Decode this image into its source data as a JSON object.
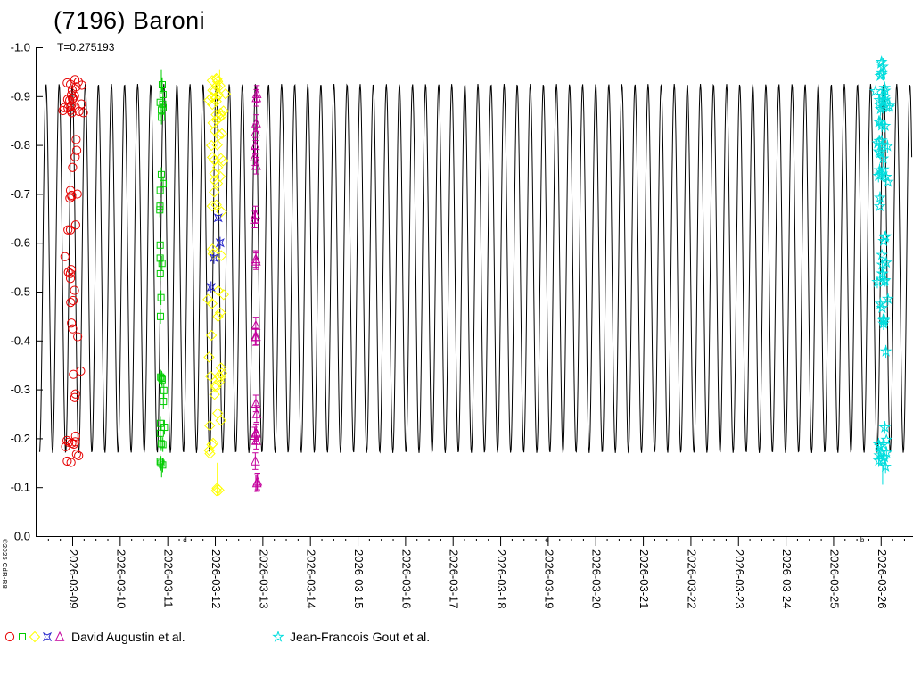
{
  "page": {
    "title": "(7196) Baroni",
    "period_label": "T=0.275193",
    "copyright": "©2025 CdR-R8"
  },
  "chart_data": {
    "type": "scatter",
    "title": "(7196) Baroni",
    "subtitle": "T=0.275193",
    "period_days": 0.275193,
    "xlabel": "",
    "ylabel": "",
    "ylim": [
      -1.0,
      0.0
    ],
    "y_axis_inverted": true,
    "grid": false,
    "legend_position": "bottom",
    "y_ticks": [
      "-1.0",
      "-0.9",
      "-0.8",
      "-0.7",
      "-0.6",
      "-0.5",
      "-0.4",
      "-0.3",
      "-0.2",
      "-0.1",
      "0.0"
    ],
    "x_ticks": [
      "2026-03-09",
      "2026-03-10",
      "2026-03-11",
      "2026-03-12",
      "2026-03-13",
      "2026-03-14",
      "2026-03-15",
      "2026-03-16",
      "2026-03-17",
      "2026-03-18",
      "2026-03-19",
      "2026-03-20",
      "2026-03-21",
      "2026-03-22",
      "2026-03-23",
      "2026-03-24",
      "2026-03-25",
      "2026-03-26"
    ],
    "x_minor_tick_days": 0.25,
    "model_curve": {
      "color": "#000000",
      "period_days": 0.275193,
      "mag_bright": -0.925,
      "mag_faint": -0.17
    },
    "axis_letters": [
      {
        "label": "d",
        "day_offset": 2.33
      },
      {
        "label": "e",
        "day_offset": 9.94
      },
      {
        "label": "b",
        "day_offset": 16.57
      }
    ],
    "series": [
      {
        "name": "David Augustin et al.",
        "symbols": [
          {
            "shape": "circle",
            "color": "#e60000"
          },
          {
            "shape": "square",
            "color": "#00cc00"
          },
          {
            "shape": "diamond",
            "color": "#ffff00"
          },
          {
            "shape": "star4",
            "color": "#2828cc"
          },
          {
            "shape": "triangle",
            "color": "#c4009c"
          }
        ],
        "sessions": [
          {
            "shape": "circle",
            "color": "#e60000",
            "label_date": "2026-03-09",
            "err": 0,
            "clusters": [
              {
                "day": 0.0,
                "spread": 0.26,
                "mag": [
                  -0.936,
                  -0.845
                ],
                "n": 24
              },
              {
                "day": 0.0,
                "spread": 0.17,
                "mag": [
                  -0.843,
                  -0.55
                ],
                "n": 13
              },
              {
                "day": 0.02,
                "spread": 0.18,
                "mag": [
                  -0.55,
                  -0.23
                ],
                "n": 14
              },
              {
                "day": 0.0,
                "spread": 0.17,
                "mag": [
                  -0.225,
                  -0.144
                ],
                "n": 11
              }
            ],
            "stems": []
          },
          {
            "shape": "square",
            "color": "#00cc00",
            "label_date": "2026-03-11",
            "err": 0.015,
            "clusters": [
              {
                "day": 1.875,
                "spread": 0.07,
                "mag": [
                  -0.935,
                  -0.85
                ],
                "n": 7
              },
              {
                "day": 1.875,
                "spread": 0.06,
                "mag": [
                  -0.79,
                  -0.65
                ],
                "n": 5
              },
              {
                "day": 1.875,
                "spread": 0.06,
                "mag": [
                  -0.63,
                  -0.53
                ],
                "n": 4
              },
              {
                "day": 1.875,
                "spread": 0.05,
                "mag": [
                  -0.495,
                  -0.44
                ],
                "n": 2
              },
              {
                "day": 1.875,
                "spread": 0.06,
                "mag": [
                  -0.38,
                  -0.24
                ],
                "n": 5
              },
              {
                "day": 1.875,
                "spread": 0.07,
                "mag": [
                  -0.24,
                  -0.14
                ],
                "n": 8
              }
            ],
            "stems": [
              [
                1.875,
                -0.955,
                -0.905
              ],
              [
                1.88,
                -0.15,
                -0.12
              ]
            ]
          },
          {
            "shape": "diamond",
            "color": "#ffff00",
            "label_date": "2026-03-12",
            "err": 0,
            "clusters": [
              {
                "day": 3.02,
                "spread": 0.22,
                "mag": [
                  -0.94,
                  -0.82
                ],
                "n": 26
              },
              {
                "day": 3.02,
                "spread": 0.2,
                "mag": [
                  -0.82,
                  -0.7
                ],
                "n": 12
              },
              {
                "day": 3.0,
                "spread": 0.16,
                "mag": [
                  -0.68,
                  -0.55
                ],
                "n": 6
              },
              {
                "day": 3.02,
                "spread": 0.18,
                "mag": [
                  -0.53,
                  -0.33
                ],
                "n": 10
              },
              {
                "day": 3.02,
                "spread": 0.2,
                "mag": [
                  -0.33,
                  -0.15
                ],
                "n": 14
              },
              {
                "day": 3.05,
                "spread": 0.1,
                "mag": [
                  -0.14,
                  -0.085
                ],
                "n": 3
              }
            ],
            "stems": [
              [
                3.1,
                -0.955,
                -0.905
              ],
              [
                3.05,
                -0.15,
                -0.082
              ]
            ]
          },
          {
            "shape": "star4",
            "color": "#2828cc",
            "label_date": "2026-03-12",
            "err": 0.012,
            "points": [
              [
                3.07,
                -0.651
              ],
              [
                3.11,
                -0.6
              ],
              [
                2.98,
                -0.569
              ],
              [
                2.92,
                -0.509
              ]
            ],
            "clusters": [],
            "stems": []
          },
          {
            "shape": "triangle",
            "color": "#c4009c",
            "label_date": "2026-03-13",
            "err": 0.017,
            "caps": true,
            "clusters": [
              {
                "day": 3.86,
                "spread": 0.05,
                "mag": [
                  -0.92,
                  -0.895
                ],
                "n": 2
              },
              {
                "day": 3.86,
                "spread": 0.05,
                "mag": [
                  -0.85,
                  -0.795
                ],
                "n": 3
              },
              {
                "day": 3.86,
                "spread": 0.04,
                "mag": [
                  -0.78,
                  -0.74
                ],
                "n": 2
              },
              {
                "day": 3.86,
                "spread": 0.04,
                "mag": [
                  -0.66,
                  -0.625
                ],
                "n": 2
              },
              {
                "day": 3.86,
                "spread": 0.04,
                "mag": [
                  -0.59,
                  -0.555
                ],
                "n": 2
              },
              {
                "day": 3.86,
                "spread": 0.04,
                "mag": [
                  -0.47,
                  -0.385
                ],
                "n": 3
              },
              {
                "day": 3.86,
                "spread": 0.05,
                "mag": [
                  -0.32,
                  -0.195
                ],
                "n": 6
              },
              {
                "day": 3.86,
                "spread": 0.04,
                "mag": [
                  -0.175,
                  -0.1
                ],
                "n": 3
              }
            ],
            "stems": [
              [
                3.86,
                -0.125,
                -0.09
              ]
            ]
          }
        ]
      },
      {
        "name": "Jean-Francois Gout et al.",
        "symbols": [
          {
            "shape": "star5",
            "color": "#00dddd"
          }
        ],
        "sessions": [
          {
            "shape": "star5",
            "color": "#00dddd",
            "label_date": "2026-03-26",
            "err": 0.013,
            "err_frac": 0.6,
            "clusters": [
              {
                "day": 17.04,
                "spread": 0.09,
                "mag": [
                  -0.975,
                  -0.925
                ],
                "n": 6
              },
              {
                "day": 17.04,
                "spread": 0.16,
                "mag": [
                  -0.925,
                  -0.795
                ],
                "n": 22
              },
              {
                "day": 17.04,
                "spread": 0.14,
                "mag": [
                  -0.795,
                  -0.67
                ],
                "n": 12
              },
              {
                "day": 17.04,
                "spread": 0.13,
                "mag": [
                  -0.615,
                  -0.465
                ],
                "n": 14
              },
              {
                "day": 17.02,
                "spread": 0.1,
                "mag": [
                  -0.45,
                  -0.33
                ],
                "n": 5
              },
              {
                "day": 17.04,
                "spread": 0.12,
                "mag": [
                  -0.25,
                  -0.14
                ],
                "n": 12
              }
            ],
            "stems": [
              [
                17.05,
                -0.978,
                -0.935
              ],
              [
                17.04,
                -0.152,
                -0.105
              ]
            ]
          }
        ]
      }
    ]
  }
}
